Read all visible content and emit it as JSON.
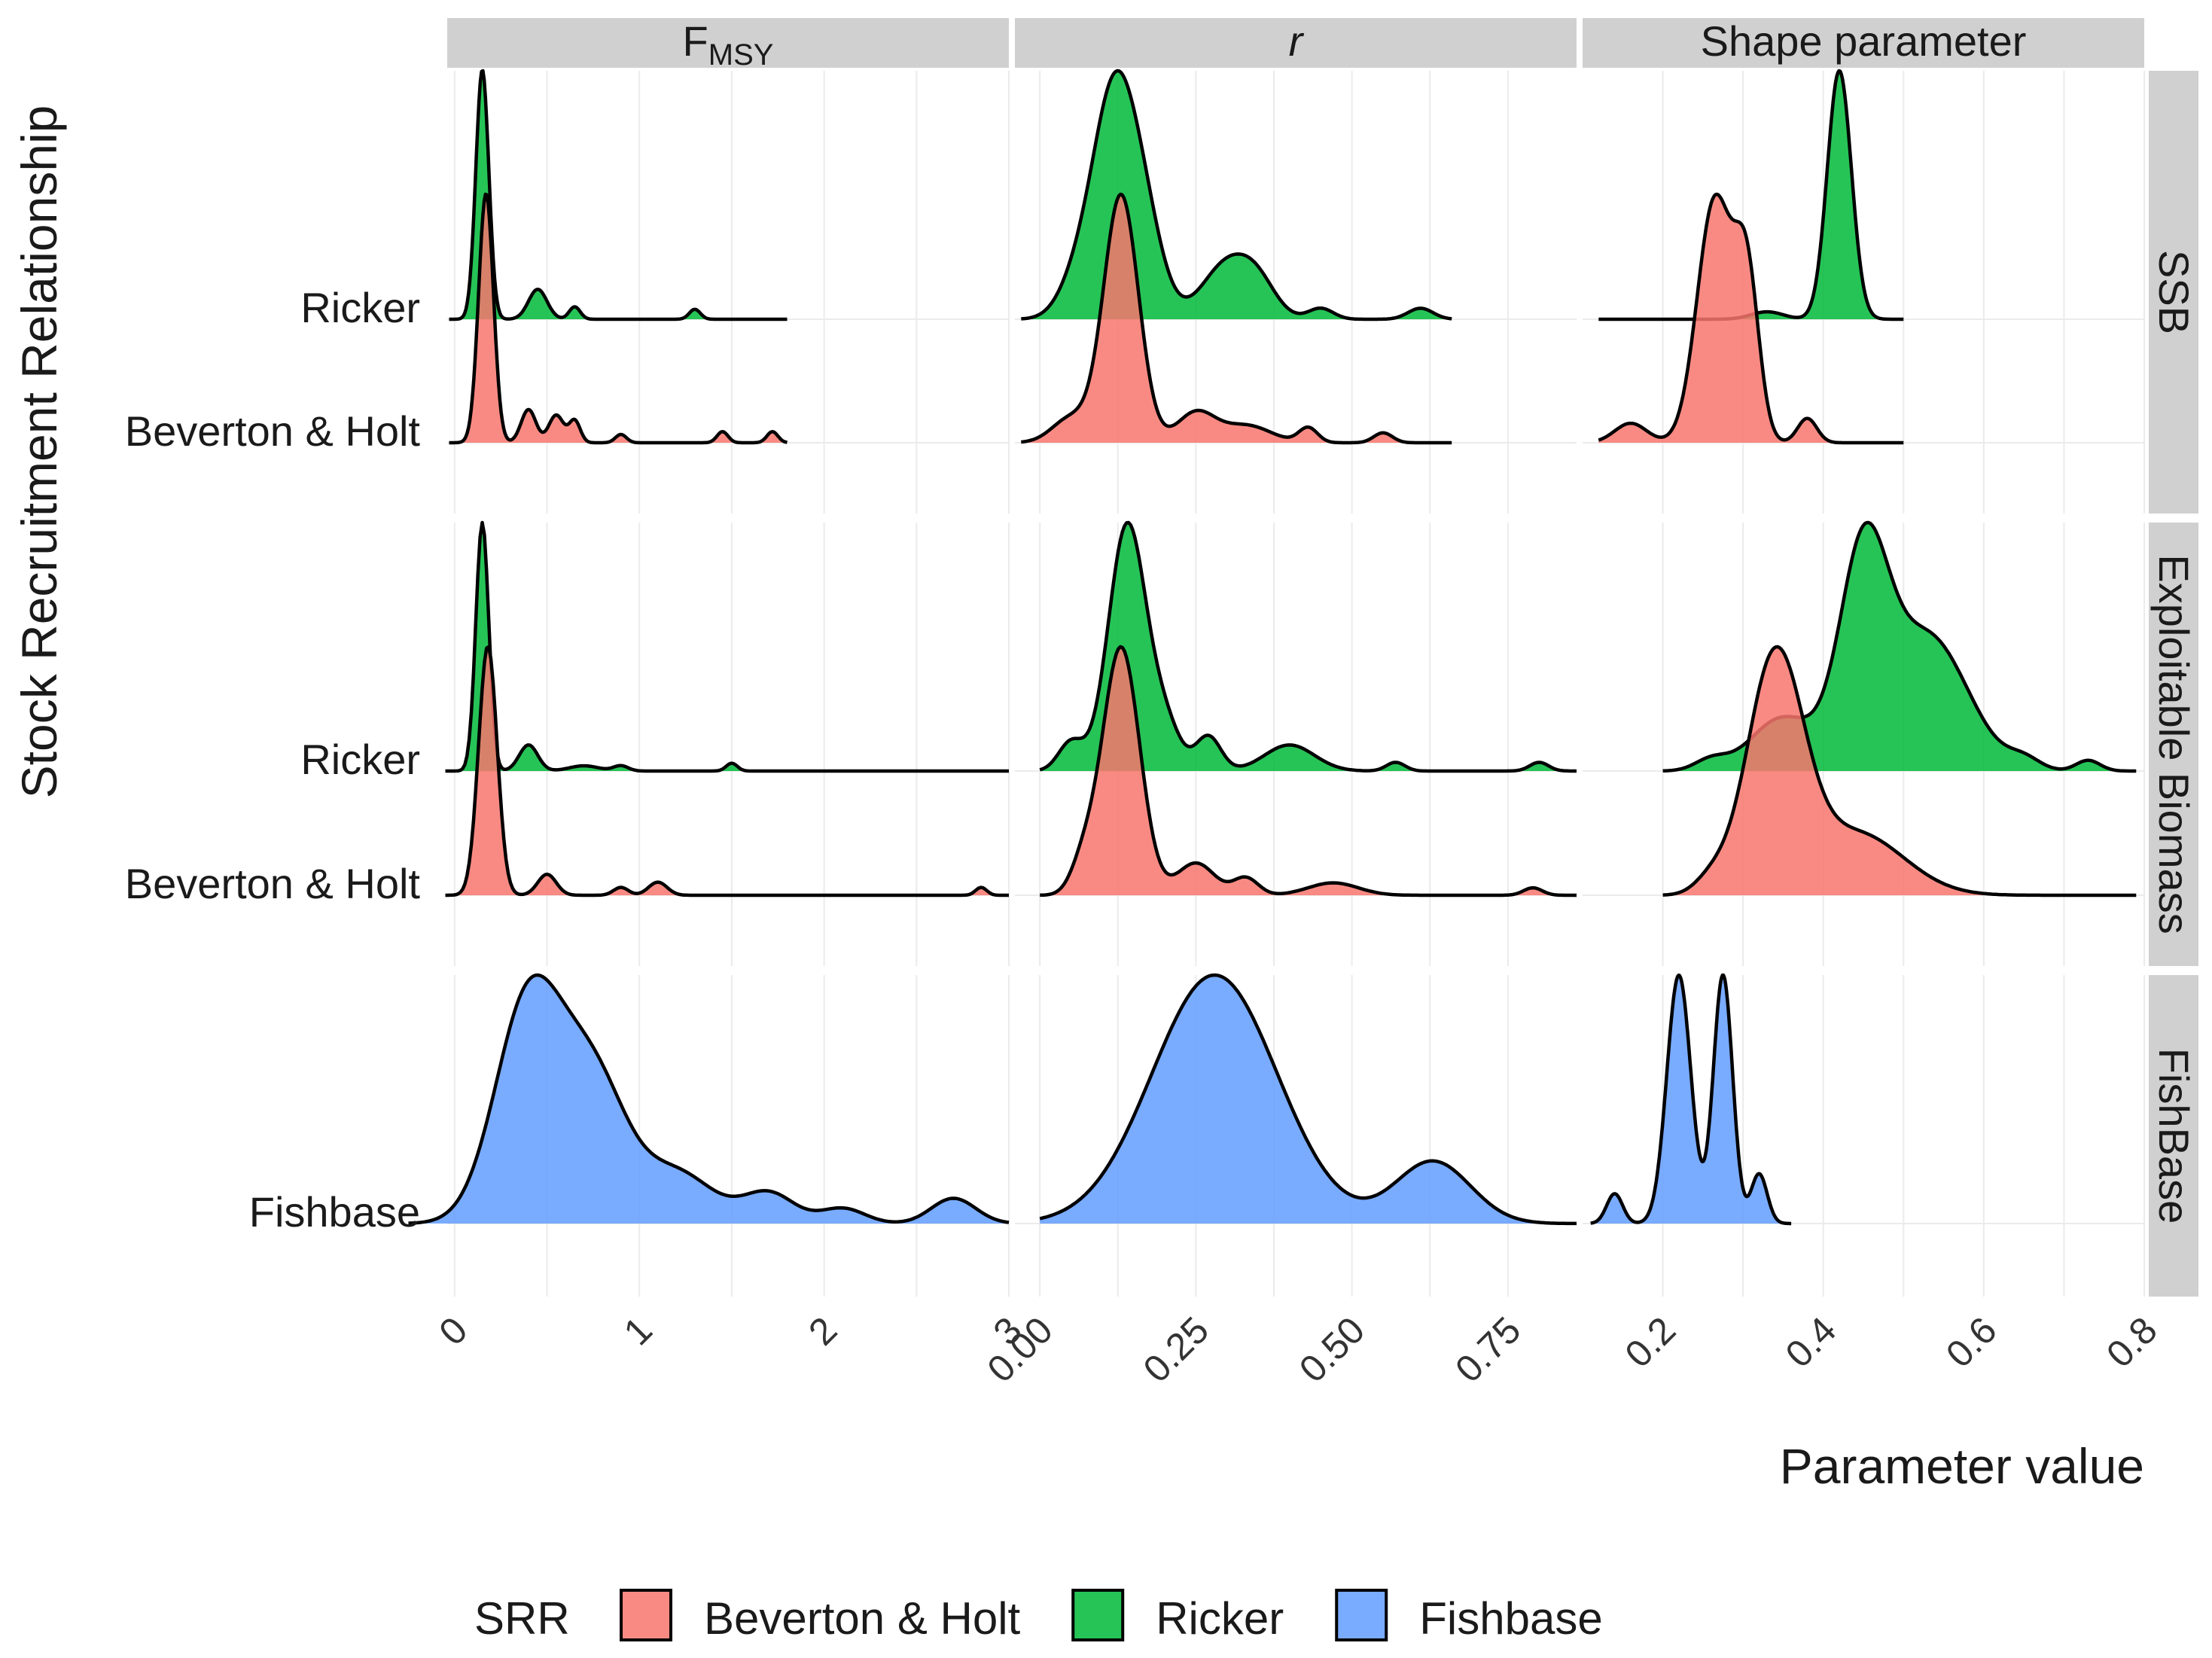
{
  "chart_data": {
    "type": "ridgeline-density",
    "x_title": "Parameter value",
    "y_title": "Stock Recruitment Relationship",
    "column_facets": [
      {
        "label": "F",
        "subscript": "MSY",
        "xlim": [
          -0.04,
          3.0
        ],
        "ticks": [
          0,
          1,
          2,
          3
        ]
      },
      {
        "label": "r",
        "italic": true,
        "xlim": [
          -0.04,
          0.86
        ],
        "ticks": [
          "0.00",
          "0.25",
          "0.50",
          "0.75"
        ]
      },
      {
        "label": "Shape parameter",
        "xlim": [
          0.1,
          0.8
        ],
        "ticks": [
          0.2,
          0.4,
          0.6,
          0.8
        ]
      }
    ],
    "row_facets": [
      "SSB",
      "Exploitable Biomass",
      "FishBase"
    ],
    "row_labels": [
      [
        "Ricker",
        "Beverton & Holt"
      ],
      [
        "Ricker",
        "Beverton & Holt"
      ],
      [
        "Fishbase"
      ]
    ],
    "legend": {
      "title": "SRR",
      "position": "bottom",
      "entries": [
        {
          "label": "Beverton & Holt",
          "color": "#F8766D"
        },
        {
          "label": "Ricker",
          "color": "#00BA38"
        },
        {
          "label": "Fishbase",
          "color": "#619CFF"
        }
      ]
    },
    "series": [
      {
        "row": 0,
        "col": 0,
        "name": "Ricker",
        "ridge": 1,
        "x_range": [
          -0.03,
          1.8
        ],
        "peaks": [
          [
            0.15,
            0.035,
            1.0
          ],
          [
            0.45,
            0.05,
            0.12
          ],
          [
            0.65,
            0.03,
            0.05
          ],
          [
            1.3,
            0.03,
            0.04
          ]
        ]
      },
      {
        "row": 0,
        "col": 0,
        "name": "Beverton & Holt",
        "ridge": 0,
        "x_range": [
          -0.03,
          1.8
        ],
        "peaks": [
          [
            0.17,
            0.04,
            0.9
          ],
          [
            0.4,
            0.04,
            0.12
          ],
          [
            0.55,
            0.04,
            0.1
          ],
          [
            0.65,
            0.03,
            0.08
          ],
          [
            0.9,
            0.03,
            0.03
          ],
          [
            1.45,
            0.03,
            0.04
          ],
          [
            1.72,
            0.03,
            0.04
          ]
        ]
      },
      {
        "row": 0,
        "col": 1,
        "name": "Ricker",
        "ridge": 1,
        "x_range": [
          -0.03,
          0.66
        ],
        "peaks": [
          [
            0.12,
            0.035,
            0.82
          ],
          [
            0.17,
            0.03,
            0.25
          ],
          [
            0.06,
            0.03,
            0.12
          ],
          [
            0.3,
            0.04,
            0.2
          ],
          [
            0.35,
            0.03,
            0.1
          ],
          [
            0.45,
            0.02,
            0.04
          ],
          [
            0.61,
            0.02,
            0.04
          ]
        ]
      },
      {
        "row": 0,
        "col": 1,
        "name": "Beverton & Holt",
        "ridge": 0,
        "x_range": [
          -0.03,
          0.66
        ],
        "peaks": [
          [
            0.13,
            0.028,
            1.0
          ],
          [
            0.05,
            0.03,
            0.1
          ],
          [
            0.25,
            0.03,
            0.12
          ],
          [
            0.33,
            0.04,
            0.07
          ],
          [
            0.43,
            0.015,
            0.06
          ],
          [
            0.55,
            0.015,
            0.04
          ]
        ]
      },
      {
        "row": 0,
        "col": 2,
        "name": "Ricker",
        "ridge": 1,
        "x_range": [
          0.12,
          0.5
        ],
        "peaks": [
          [
            0.42,
            0.015,
            1.0
          ],
          [
            0.33,
            0.02,
            0.03
          ]
        ]
      },
      {
        "row": 0,
        "col": 2,
        "name": "Beverton & Holt",
        "ridge": 0,
        "x_range": [
          0.12,
          0.5
        ],
        "peaks": [
          [
            0.265,
            0.022,
            0.5
          ],
          [
            0.305,
            0.015,
            0.32
          ],
          [
            0.16,
            0.02,
            0.04
          ],
          [
            0.38,
            0.012,
            0.05
          ]
        ]
      },
      {
        "row": 1,
        "col": 0,
        "name": "Ricker",
        "ridge": 1,
        "x_range": [
          -0.05,
          3.0
        ],
        "peaks": [
          [
            0.15,
            0.035,
            0.95
          ],
          [
            0.4,
            0.05,
            0.1
          ],
          [
            0.7,
            0.08,
            0.02
          ],
          [
            0.9,
            0.04,
            0.02
          ],
          [
            1.5,
            0.03,
            0.03
          ]
        ]
      },
      {
        "row": 1,
        "col": 0,
        "name": "Beverton & Holt",
        "ridge": 0,
        "x_range": [
          -0.05,
          3.0
        ],
        "peaks": [
          [
            0.18,
            0.05,
            0.95
          ],
          [
            0.5,
            0.05,
            0.08
          ],
          [
            0.9,
            0.04,
            0.03
          ],
          [
            1.1,
            0.05,
            0.05
          ],
          [
            2.85,
            0.03,
            0.03
          ]
        ]
      },
      {
        "row": 1,
        "col": 1,
        "name": "Ricker",
        "ridge": 1,
        "x_range": [
          0.0,
          0.86
        ],
        "peaks": [
          [
            0.14,
            0.03,
            0.85
          ],
          [
            0.2,
            0.025,
            0.15
          ],
          [
            0.05,
            0.02,
            0.1
          ],
          [
            0.27,
            0.02,
            0.12
          ],
          [
            0.4,
            0.04,
            0.09
          ],
          [
            0.57,
            0.015,
            0.03
          ],
          [
            0.8,
            0.015,
            0.03
          ]
        ]
      },
      {
        "row": 1,
        "col": 1,
        "name": "Beverton & Holt",
        "ridge": 0,
        "x_range": [
          0.0,
          0.86
        ],
        "peaks": [
          [
            0.13,
            0.03,
            1.0
          ],
          [
            0.07,
            0.02,
            0.12
          ],
          [
            0.25,
            0.03,
            0.13
          ],
          [
            0.33,
            0.02,
            0.07
          ],
          [
            0.47,
            0.04,
            0.05
          ],
          [
            0.79,
            0.015,
            0.03
          ]
        ]
      },
      {
        "row": 1,
        "col": 2,
        "name": "Ricker",
        "ridge": 1,
        "x_range": [
          0.2,
          0.79
        ],
        "peaks": [
          [
            0.45,
            0.03,
            0.58
          ],
          [
            0.53,
            0.05,
            0.38
          ],
          [
            0.35,
            0.04,
            0.15
          ],
          [
            0.65,
            0.02,
            0.03
          ],
          [
            0.73,
            0.015,
            0.03
          ],
          [
            0.26,
            0.02,
            0.03
          ]
        ]
      },
      {
        "row": 1,
        "col": 2,
        "name": "Beverton & Holt",
        "ridge": 0,
        "x_range": [
          0.2,
          0.79
        ],
        "peaks": [
          [
            0.34,
            0.035,
            0.82
          ],
          [
            0.44,
            0.06,
            0.22
          ],
          [
            0.26,
            0.02,
            0.05
          ]
        ]
      },
      {
        "row": 2,
        "col": 0,
        "name": "Fishbase",
        "ridge": 0,
        "x_range": [
          -0.25,
          3.0
        ],
        "peaks": [
          [
            0.4,
            0.18,
            0.88
          ],
          [
            0.75,
            0.18,
            0.55
          ],
          [
            1.2,
            0.2,
            0.2
          ],
          [
            1.7,
            0.14,
            0.12
          ],
          [
            2.1,
            0.12,
            0.06
          ],
          [
            2.7,
            0.12,
            0.1
          ]
        ]
      },
      {
        "row": 2,
        "col": 1,
        "name": "Fishbase",
        "ridge": 0,
        "x_range": [
          0.0,
          0.86
        ],
        "peaks": [
          [
            0.28,
            0.1,
            1.0
          ],
          [
            0.63,
            0.06,
            0.25
          ]
        ]
      },
      {
        "row": 2,
        "col": 2,
        "name": "Fishbase",
        "ridge": 0,
        "x_range": [
          0.11,
          0.36
        ],
        "peaks": [
          [
            0.22,
            0.015,
            1.0
          ],
          [
            0.275,
            0.012,
            1.0
          ],
          [
            0.14,
            0.01,
            0.12
          ],
          [
            0.32,
            0.01,
            0.2
          ]
        ]
      }
    ]
  }
}
